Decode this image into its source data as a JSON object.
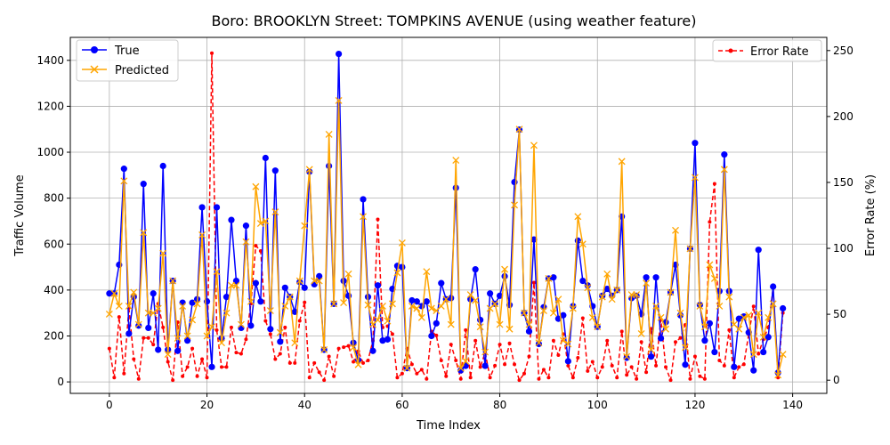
{
  "chart_data": {
    "type": "line",
    "title": "Boro: BROOKLYN Street: TOMPKINS AVENUE (using weather feature)",
    "xlabel": "Time Index",
    "ylabel": "Traffic Volume",
    "y2label": "Error Rate (%)",
    "xlim": [
      -8,
      147
    ],
    "ylim": [
      -50,
      1500
    ],
    "y2lim": [
      -10,
      260
    ],
    "xticks": [
      0,
      20,
      40,
      60,
      80,
      100,
      120,
      140
    ],
    "yticks": [
      0,
      200,
      400,
      600,
      800,
      1000,
      1200,
      1400
    ],
    "y2ticks": [
      0,
      50,
      100,
      150,
      200,
      250
    ],
    "grid": true,
    "legend_left": "upper-left",
    "legend_right": "upper-right",
    "colors": {
      "true": "#0000ff",
      "predicted": "#ffa500",
      "error": "#ff0000"
    },
    "series": [
      {
        "name": "True",
        "axis": "left",
        "values": [
          385,
          385,
          510,
          928,
          210,
          370,
          245,
          862,
          235,
          385,
          140,
          940,
          140,
          440,
          135,
          345,
          180,
          345,
          360,
          760,
          350,
          65,
          760,
          190,
          370,
          705,
          440,
          235,
          680,
          245,
          430,
          350,
          975,
          230,
          920,
          175,
          410,
          370,
          305,
          435,
          410,
          915,
          425,
          460,
          140,
          940,
          340,
          1428,
          440,
          375,
          170,
          95,
          795,
          370,
          135,
          420,
          180,
          185,
          405,
          505,
          500,
          60,
          355,
          350,
          330,
          350,
          200,
          255,
          430,
          360,
          365,
          845,
          50,
          70,
          360,
          490,
          270,
          70,
          385,
          340,
          375,
          460,
          335,
          870,
          1098,
          300,
          220,
          620,
          165,
          325,
          450,
          455,
          275,
          290,
          90,
          330,
          615,
          440,
          420,
          330,
          240,
          375,
          405,
          375,
          400,
          720,
          105,
          365,
          375,
          295,
          455,
          110,
          455,
          190,
          260,
          390,
          510,
          290,
          75,
          580,
          1040,
          335,
          180,
          255,
          130,
          395,
          990,
          395,
          65,
          275,
          285,
          215,
          50,
          575,
          130,
          195,
          415,
          40,
          320
        ]
      },
      {
        "name": "Predicted",
        "axis": "left",
        "values": [
          295,
          385,
          330,
          875,
          330,
          390,
          250,
          650,
          300,
          300,
          320,
          560,
          120,
          440,
          190,
          330,
          200,
          270,
          340,
          640,
          200,
          240,
          480,
          170,
          300,
          420,
          420,
          250,
          610,
          350,
          850,
          690,
          700,
          310,
          740,
          215,
          330,
          370,
          170,
          440,
          680,
          925,
          440,
          440,
          140,
          1078,
          340,
          1225,
          345,
          470,
          150,
          75,
          720,
          335,
          250,
          270,
          330,
          265,
          340,
          475,
          605,
          60,
          330,
          320,
          280,
          480,
          320,
          310,
          330,
          360,
          250,
          965,
          60,
          90,
          380,
          355,
          240,
          130,
          320,
          340,
          250,
          490,
          230,
          770,
          1100,
          300,
          250,
          1030,
          170,
          310,
          450,
          300,
          360,
          180,
          165,
          320,
          720,
          600,
          410,
          280,
          240,
          370,
          470,
          360,
          400,
          960,
          110,
          380,
          380,
          210,
          430,
          140,
          330,
          280,
          230,
          390,
          660,
          300,
          150,
          580,
          890,
          330,
          240,
          510,
          450,
          330,
          925,
          370,
          250,
          230,
          280,
          290,
          120,
          300,
          195,
          280,
          340,
          30,
          120
        ]
      },
      {
        "name": "Error Rate",
        "axis": "right",
        "values": [
          24,
          2,
          48,
          5,
          55,
          16,
          1,
          32,
          32,
          27,
          58,
          40,
          14,
          0,
          44,
          3,
          10,
          24,
          3,
          16,
          2,
          248,
          38,
          10,
          10,
          40,
          21,
          20,
          31,
          58,
          102,
          98,
          45,
          35,
          16,
          20,
          40,
          13,
          13,
          45,
          59,
          2,
          13,
          6,
          0,
          18,
          3,
          24,
          25,
          26,
          14,
          22,
          13,
          15,
          30,
          122,
          40,
          41,
          35,
          2,
          5,
          24,
          12,
          5,
          8,
          1,
          37,
          34,
          15,
          3,
          27,
          15,
          1,
          38,
          2,
          30,
          10,
          21,
          2,
          11,
          27,
          12,
          28,
          12,
          0,
          5,
          18,
          74,
          1,
          8,
          2,
          30,
          19,
          35,
          11,
          2,
          17,
          47,
          7,
          14,
          2,
          10,
          30,
          11,
          2,
          37,
          4,
          10,
          1,
          29,
          6,
          39,
          11,
          46,
          10,
          0,
          29,
          32,
          42,
          1,
          18,
          3,
          1,
          120,
          149,
          15,
          11,
          38,
          2,
          10,
          12,
          35,
          56,
          20,
          31,
          40,
          70,
          2,
          51
        ]
      }
    ]
  }
}
